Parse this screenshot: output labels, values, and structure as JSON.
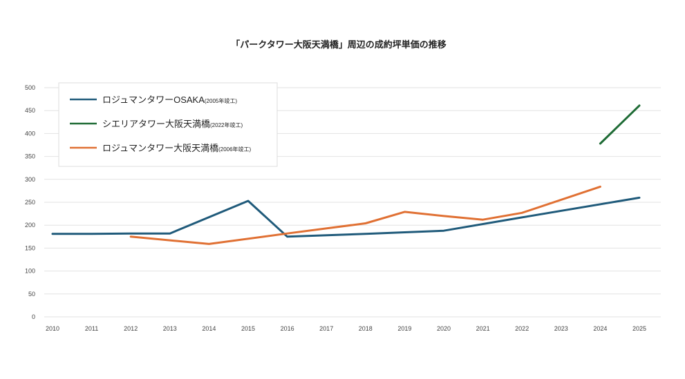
{
  "chart_data": {
    "type": "line",
    "title": "「パークタワー大阪天満橋」周辺の成約坪単価の推移",
    "xlabel": "",
    "ylabel": "",
    "x": [
      2010,
      2011,
      2012,
      2013,
      2014,
      2015,
      2016,
      2017,
      2018,
      2019,
      2020,
      2021,
      2022,
      2023,
      2024,
      2025
    ],
    "xticks": [
      "2010",
      "2011",
      "2012",
      "2013",
      "2014",
      "2015",
      "2016",
      "2017",
      "2018",
      "2019",
      "2020",
      "2021",
      "2022",
      "2023",
      "2024",
      "2025"
    ],
    "ylim": [
      0,
      500
    ],
    "yticks": [
      0,
      50,
      100,
      150,
      200,
      250,
      300,
      350,
      400,
      450,
      500
    ],
    "grid": true,
    "legend_position": "top-left",
    "series": [
      {
        "name": "ロジュマンタワーOSAKA",
        "note": "(2005年竣工)",
        "color": "#1f5a7a",
        "points": [
          [
            2010,
            181
          ],
          [
            2011,
            181
          ],
          [
            2012,
            182
          ],
          [
            2013,
            182
          ],
          [
            2015,
            253
          ],
          [
            2016,
            175
          ],
          [
            2018,
            181
          ],
          [
            2020,
            188
          ],
          [
            2022,
            217
          ],
          [
            2025,
            260
          ]
        ]
      },
      {
        "name": "シエリアタワー大阪天満橋",
        "note": "(2022年竣工)",
        "color": "#1e6b35",
        "points": [
          [
            2024,
            378
          ],
          [
            2025,
            461
          ]
        ]
      },
      {
        "name": "ロジュマンタワー大阪天満橋",
        "note": "(2006年竣工)",
        "color": "#e07033",
        "points": [
          [
            2012,
            175
          ],
          [
            2014,
            159
          ],
          [
            2016,
            182
          ],
          [
            2018,
            204
          ],
          [
            2019,
            229
          ],
          [
            2020,
            220
          ],
          [
            2021,
            212
          ],
          [
            2022,
            227
          ],
          [
            2024,
            284
          ]
        ]
      }
    ]
  }
}
